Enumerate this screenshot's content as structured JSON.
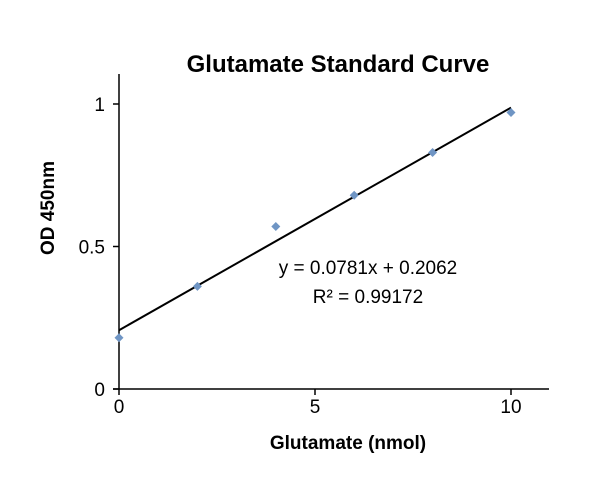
{
  "chart_data": {
    "type": "scatter",
    "title": "Glutamate Standard Curve",
    "xlabel": "Glutamate (nmol)",
    "ylabel": "OD 450nm",
    "xlim": [
      0,
      11
    ],
    "ylim": [
      0,
      1.1
    ],
    "x_ticks": [
      0,
      5,
      10
    ],
    "y_ticks": [
      0,
      0.5,
      1
    ],
    "x_tick_labels": [
      "0",
      "5",
      "10"
    ],
    "y_tick_labels": [
      "0",
      "0.5",
      "1"
    ],
    "grid": false,
    "legend": "none",
    "series": [
      {
        "color": "#6f95c4",
        "points": [
          {
            "x": 0,
            "y": 0.18
          },
          {
            "x": 2,
            "y": 0.36
          },
          {
            "x": 4,
            "y": 0.57
          },
          {
            "x": 6,
            "y": 0.68
          },
          {
            "x": 8,
            "y": 0.83
          },
          {
            "x": 10,
            "y": 0.97
          }
        ]
      }
    ],
    "trendline": {
      "type": "linear",
      "slope": 0.0781,
      "intercept": 0.2062,
      "x_range": [
        0,
        10
      ],
      "color": "#000000"
    },
    "annotations": {
      "equation": "y = 0.0781x + 0.2062",
      "r_squared": "R² = 0.99172"
    }
  }
}
